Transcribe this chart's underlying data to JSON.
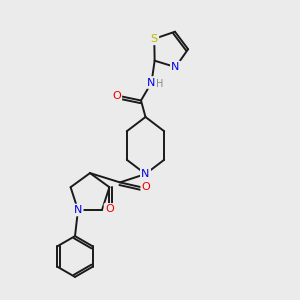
{
  "background_color": "#ebebeb",
  "bond_color": "#1a1a1a",
  "atom_colors": {
    "N": "#0000ee",
    "O": "#ee0000",
    "S": "#bbbb00",
    "H": "#666666",
    "C": "#1a1a1a"
  }
}
